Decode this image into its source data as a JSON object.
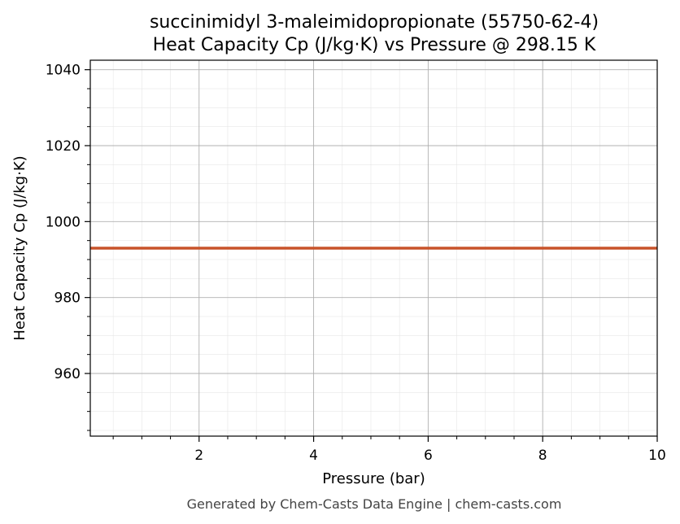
{
  "chart_data": {
    "type": "line",
    "title_line1": "succinimidyl 3-maleimidopropionate (55750-62-4)",
    "title_line2": "Heat Capacity Cp (J/kg·K) vs Pressure @ 298.15 K",
    "xlabel": "Pressure (bar)",
    "ylabel": "Heat Capacity Cp (J/kg·K)",
    "xlim": [
      0.1,
      10
    ],
    "ylim": [
      943.5,
      1042.5
    ],
    "x_ticks": [
      2,
      4,
      6,
      8,
      10
    ],
    "y_ticks": [
      960,
      980,
      1000,
      1020,
      1040
    ],
    "grid": true,
    "series": [
      {
        "color": "#c8532a",
        "x": [
          0.1,
          10
        ],
        "y": [
          993,
          993
        ]
      }
    ]
  },
  "footer": "Generated by Chem-Casts Data Engine | chem-casts.com"
}
